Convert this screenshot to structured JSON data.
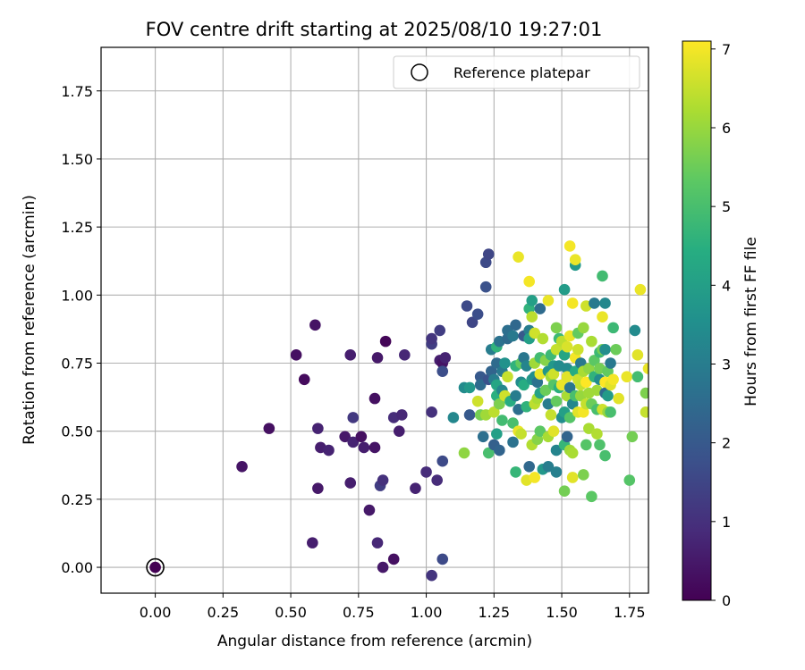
{
  "chart_data": {
    "type": "scatter",
    "title": "FOV centre drift starting at 2025/08/10 19:27:01",
    "xlabel": "Angular distance from reference (arcmin)",
    "ylabel": "Rotation from reference (arcmin)",
    "xlim": [
      -0.2,
      1.82
    ],
    "ylim": [
      -0.095,
      1.91
    ],
    "xticks": [
      "0.00",
      "0.25",
      "0.50",
      "0.75",
      "1.00",
      "1.25",
      "1.50",
      "1.75"
    ],
    "yticks": [
      "0.00",
      "0.25",
      "0.50",
      "0.75",
      "1.00",
      "1.25",
      "1.50",
      "1.75"
    ],
    "grid": true,
    "legend": {
      "position": "top-right",
      "entries": [
        "Reference platepar"
      ]
    },
    "colorbar": {
      "label": "Hours from first FF file",
      "range": [
        0,
        7.1
      ],
      "ticks": [
        "0",
        "1",
        "2",
        "3",
        "4",
        "5",
        "6",
        "7"
      ],
      "colormap": "viridis"
    },
    "reference_point": {
      "x": 0.0,
      "y": 0.0,
      "c": 0.0
    },
    "points": [
      [
        0.0,
        0.0,
        0.0
      ],
      [
        0.32,
        0.37,
        0.4
      ],
      [
        0.42,
        0.51,
        0.3
      ],
      [
        0.52,
        0.78,
        0.3
      ],
      [
        0.55,
        0.69,
        0.2
      ],
      [
        0.58,
        0.09,
        0.6
      ],
      [
        0.59,
        0.89,
        0.4
      ],
      [
        0.6,
        0.51,
        0.7
      ],
      [
        0.6,
        0.29,
        0.5
      ],
      [
        0.61,
        0.44,
        0.6
      ],
      [
        0.64,
        0.43,
        0.7
      ],
      [
        0.7,
        0.48,
        0.5
      ],
      [
        0.72,
        0.31,
        0.6
      ],
      [
        0.72,
        0.78,
        0.6
      ],
      [
        0.73,
        0.46,
        0.7
      ],
      [
        0.73,
        0.55,
        1.2
      ],
      [
        0.76,
        0.48,
        0.3
      ],
      [
        0.77,
        0.44,
        0.6
      ],
      [
        0.79,
        0.21,
        0.5
      ],
      [
        0.81,
        0.44,
        0.4
      ],
      [
        0.81,
        0.62,
        0.3
      ],
      [
        0.82,
        0.77,
        0.5
      ],
      [
        0.82,
        0.09,
        0.8
      ],
      [
        0.83,
        0.3,
        1.3
      ],
      [
        0.84,
        0.32,
        1.0
      ],
      [
        0.84,
        0.0,
        0.5
      ],
      [
        0.85,
        0.83,
        0.1
      ],
      [
        0.88,
        0.03,
        0.3
      ],
      [
        0.88,
        0.55,
        0.9
      ],
      [
        0.9,
        0.5,
        0.6
      ],
      [
        0.91,
        0.56,
        0.8
      ],
      [
        0.92,
        0.78,
        0.8
      ],
      [
        0.96,
        0.29,
        0.7
      ],
      [
        1.0,
        0.35,
        0.9
      ],
      [
        1.02,
        0.57,
        1.0
      ],
      [
        1.02,
        0.82,
        1.3
      ],
      [
        1.02,
        0.84,
        1.1
      ],
      [
        1.02,
        -0.03,
        1.1
      ],
      [
        1.04,
        0.32,
        0.9
      ],
      [
        1.05,
        0.87,
        1.3
      ],
      [
        1.05,
        0.76,
        0.6
      ],
      [
        1.06,
        0.75,
        0.4
      ],
      [
        1.06,
        0.72,
        1.7
      ],
      [
        1.06,
        0.39,
        1.6
      ],
      [
        1.06,
        0.03,
        1.6
      ],
      [
        1.07,
        0.77,
        0.7
      ],
      [
        1.1,
        0.55,
        3.3
      ],
      [
        1.14,
        0.42,
        5.9
      ],
      [
        1.14,
        0.66,
        3.4
      ],
      [
        1.15,
        0.96,
        1.6
      ],
      [
        1.16,
        0.66,
        3.8
      ],
      [
        1.16,
        0.56,
        2.0
      ],
      [
        1.17,
        0.9,
        1.5
      ],
      [
        1.19,
        0.61,
        6.6
      ],
      [
        1.19,
        0.93,
        1.7
      ],
      [
        1.2,
        0.7,
        2.0
      ],
      [
        1.2,
        0.67,
        2.5
      ],
      [
        1.2,
        0.56,
        5.6
      ],
      [
        1.21,
        0.48,
        2.6
      ],
      [
        1.22,
        1.03,
        1.8
      ],
      [
        1.22,
        1.12,
        1.6
      ],
      [
        1.22,
        0.56,
        6.1
      ],
      [
        1.23,
        0.69,
        1.8
      ],
      [
        1.23,
        1.15,
        1.5
      ],
      [
        1.23,
        0.42,
        5.0
      ],
      [
        1.24,
        0.72,
        2.3
      ],
      [
        1.24,
        0.8,
        3.0
      ],
      [
        1.25,
        0.45,
        2.2
      ],
      [
        1.25,
        0.57,
        6.4
      ],
      [
        1.25,
        0.69,
        3.0
      ],
      [
        1.26,
        0.81,
        4.6
      ],
      [
        1.26,
        0.75,
        2.5
      ],
      [
        1.26,
        0.67,
        4.2
      ],
      [
        1.26,
        0.49,
        4.0
      ],
      [
        1.26,
        0.63,
        4.5
      ],
      [
        1.27,
        0.43,
        2.3
      ],
      [
        1.27,
        0.6,
        5.7
      ],
      [
        1.27,
        0.83,
        2.7
      ],
      [
        1.28,
        0.65,
        3.3
      ],
      [
        1.28,
        0.72,
        2.9
      ],
      [
        1.28,
        0.54,
        4.9
      ],
      [
        1.29,
        0.63,
        6.6
      ],
      [
        1.29,
        0.75,
        3.6
      ],
      [
        1.3,
        0.84,
        2.5
      ],
      [
        1.3,
        0.87,
        2.6
      ],
      [
        1.3,
        0.7,
        6.5
      ],
      [
        1.31,
        0.61,
        4.4
      ],
      [
        1.32,
        0.85,
        2.9
      ],
      [
        1.32,
        0.46,
        2.7
      ],
      [
        1.32,
        0.53,
        5.0
      ],
      [
        1.33,
        0.74,
        4.6
      ],
      [
        1.33,
        0.35,
        4.7
      ],
      [
        1.33,
        0.63,
        3.0
      ],
      [
        1.33,
        0.89,
        2.4
      ],
      [
        1.34,
        0.58,
        2.6
      ],
      [
        1.34,
        0.5,
        6.9
      ],
      [
        1.34,
        1.14,
        6.9
      ],
      [
        1.35,
        0.68,
        3.4
      ],
      [
        1.35,
        0.75,
        5.4
      ],
      [
        1.35,
        0.49,
        6.5
      ],
      [
        1.36,
        0.85,
        2.0
      ],
      [
        1.36,
        0.77,
        2.8
      ],
      [
        1.36,
        0.67,
        4.4
      ],
      [
        1.37,
        0.59,
        4.6
      ],
      [
        1.37,
        0.32,
        6.8
      ],
      [
        1.37,
        0.74,
        3.2
      ],
      [
        1.38,
        0.87,
        3.0
      ],
      [
        1.38,
        1.05,
        7.0
      ],
      [
        1.38,
        0.37,
        2.4
      ],
      [
        1.38,
        0.95,
        4.6
      ],
      [
        1.38,
        0.84,
        4.0
      ],
      [
        1.39,
        0.69,
        3.9
      ],
      [
        1.39,
        0.98,
        4.0
      ],
      [
        1.39,
        0.92,
        6.4
      ],
      [
        1.39,
        0.45,
        6.3
      ],
      [
        1.4,
        0.86,
        6.6
      ],
      [
        1.4,
        0.7,
        3.5
      ],
      [
        1.4,
        0.6,
        6.4
      ],
      [
        1.4,
        0.33,
        7.0
      ],
      [
        1.4,
        0.75,
        6.1
      ],
      [
        1.41,
        0.62,
        6.2
      ],
      [
        1.41,
        0.68,
        2.7
      ],
      [
        1.41,
        0.47,
        5.8
      ],
      [
        1.42,
        0.77,
        4.9
      ],
      [
        1.42,
        0.64,
        4.1
      ],
      [
        1.42,
        0.95,
        2.5
      ],
      [
        1.42,
        0.5,
        5.3
      ],
      [
        1.42,
        0.71,
        6.9
      ],
      [
        1.43,
        0.84,
        6.3
      ],
      [
        1.43,
        0.36,
        3.8
      ],
      [
        1.44,
        0.65,
        5.5
      ],
      [
        1.44,
        0.76,
        5.8
      ],
      [
        1.45,
        0.98,
        6.9
      ],
      [
        1.45,
        0.6,
        3.0
      ],
      [
        1.45,
        0.72,
        3.7
      ],
      [
        1.45,
        0.37,
        3.0
      ],
      [
        1.45,
        0.48,
        6.2
      ],
      [
        1.46,
        0.56,
        6.5
      ],
      [
        1.46,
        0.7,
        6.1
      ],
      [
        1.46,
        0.78,
        4.8
      ],
      [
        1.47,
        0.74,
        3.8
      ],
      [
        1.47,
        0.5,
        6.8
      ],
      [
        1.47,
        0.71,
        6.6
      ],
      [
        1.47,
        0.67,
        5.2
      ],
      [
        1.48,
        0.35,
        3.1
      ],
      [
        1.48,
        0.43,
        3.2
      ],
      [
        1.48,
        0.8,
        6.5
      ],
      [
        1.48,
        0.61,
        5.4
      ],
      [
        1.48,
        0.88,
        5.7
      ],
      [
        1.49,
        0.74,
        3.4
      ],
      [
        1.49,
        0.84,
        4.8
      ],
      [
        1.49,
        0.66,
        4.5
      ],
      [
        1.5,
        0.55,
        3.5
      ],
      [
        1.5,
        0.67,
        6.9
      ],
      [
        1.5,
        0.83,
        6.4
      ],
      [
        1.51,
        0.45,
        4.7
      ],
      [
        1.51,
        0.78,
        4.2
      ],
      [
        1.51,
        0.57,
        4.0
      ],
      [
        1.51,
        0.28,
        5.6
      ],
      [
        1.51,
        1.02,
        3.9
      ],
      [
        1.52,
        0.73,
        3.4
      ],
      [
        1.52,
        0.63,
        6.2
      ],
      [
        1.52,
        0.7,
        6.8
      ],
      [
        1.52,
        0.48,
        2.3
      ],
      [
        1.52,
        0.81,
        6.7
      ],
      [
        1.53,
        0.43,
        6.1
      ],
      [
        1.53,
        0.55,
        5.2
      ],
      [
        1.53,
        0.85,
        6.9
      ],
      [
        1.53,
        0.66,
        2.8
      ],
      [
        1.53,
        1.18,
        7.0
      ],
      [
        1.54,
        0.97,
        7.0
      ],
      [
        1.54,
        0.33,
        6.8
      ],
      [
        1.54,
        0.6,
        3.3
      ],
      [
        1.54,
        0.42,
        6.2
      ],
      [
        1.55,
        1.11,
        3.8
      ],
      [
        1.55,
        0.72,
        4.4
      ],
      [
        1.55,
        0.77,
        7.0
      ],
      [
        1.55,
        0.63,
        5.0
      ],
      [
        1.55,
        1.13,
        6.9
      ],
      [
        1.56,
        0.57,
        6.8
      ],
      [
        1.56,
        0.69,
        6.6
      ],
      [
        1.56,
        0.8,
        6.6
      ],
      [
        1.56,
        0.86,
        5.4
      ],
      [
        1.57,
        0.75,
        2.9
      ],
      [
        1.57,
        0.63,
        6.0
      ],
      [
        1.57,
        0.67,
        6.5
      ],
      [
        1.58,
        0.34,
        5.7
      ],
      [
        1.58,
        0.57,
        7.0
      ],
      [
        1.58,
        0.72,
        6.2
      ],
      [
        1.58,
        0.88,
        6.0
      ],
      [
        1.59,
        0.6,
        6.5
      ],
      [
        1.59,
        0.68,
        7.1
      ],
      [
        1.59,
        0.96,
        6.6
      ],
      [
        1.59,
        0.45,
        5.2
      ],
      [
        1.6,
        0.51,
        6.2
      ],
      [
        1.6,
        0.64,
        6.1
      ],
      [
        1.6,
        0.73,
        5.9
      ],
      [
        1.61,
        0.26,
        5.3
      ],
      [
        1.61,
        0.83,
        6.2
      ],
      [
        1.61,
        0.6,
        5.5
      ],
      [
        1.62,
        0.7,
        4.6
      ],
      [
        1.62,
        0.97,
        2.9
      ],
      [
        1.62,
        0.76,
        5.3
      ],
      [
        1.63,
        0.58,
        5.0
      ],
      [
        1.63,
        0.49,
        6.3
      ],
      [
        1.63,
        0.65,
        6.1
      ],
      [
        1.64,
        0.45,
        5.1
      ],
      [
        1.64,
        0.79,
        4.8
      ],
      [
        1.64,
        0.69,
        3.4
      ],
      [
        1.64,
        0.73,
        5.6
      ],
      [
        1.65,
        0.58,
        6.6
      ],
      [
        1.65,
        0.92,
        6.9
      ],
      [
        1.65,
        1.07,
        4.9
      ],
      [
        1.65,
        0.8,
        5.6
      ],
      [
        1.66,
        0.68,
        7.1
      ],
      [
        1.66,
        0.41,
        5.0
      ],
      [
        1.66,
        0.64,
        2.5
      ],
      [
        1.66,
        0.8,
        3.5
      ],
      [
        1.66,
        0.97,
        3.3
      ],
      [
        1.67,
        0.57,
        6.0
      ],
      [
        1.67,
        0.72,
        5.4
      ],
      [
        1.67,
        0.63,
        3.9
      ],
      [
        1.68,
        0.67,
        6.8
      ],
      [
        1.68,
        0.57,
        5.0
      ],
      [
        1.68,
        0.75,
        2.9
      ],
      [
        1.69,
        0.88,
        4.8
      ],
      [
        1.69,
        0.69,
        7.0
      ],
      [
        1.7,
        0.8,
        5.5
      ],
      [
        1.71,
        0.62,
        6.8
      ],
      [
        1.74,
        0.7,
        6.9
      ],
      [
        1.75,
        0.32,
        5.2
      ],
      [
        1.76,
        0.48,
        5.6
      ],
      [
        1.77,
        0.87,
        3.4
      ],
      [
        1.78,
        0.7,
        4.9
      ],
      [
        1.78,
        0.78,
        6.8
      ],
      [
        1.79,
        1.02,
        6.9
      ],
      [
        1.81,
        0.57,
        6.5
      ],
      [
        1.81,
        0.64,
        5.7
      ],
      [
        1.82,
        0.73,
        6.9
      ]
    ]
  }
}
